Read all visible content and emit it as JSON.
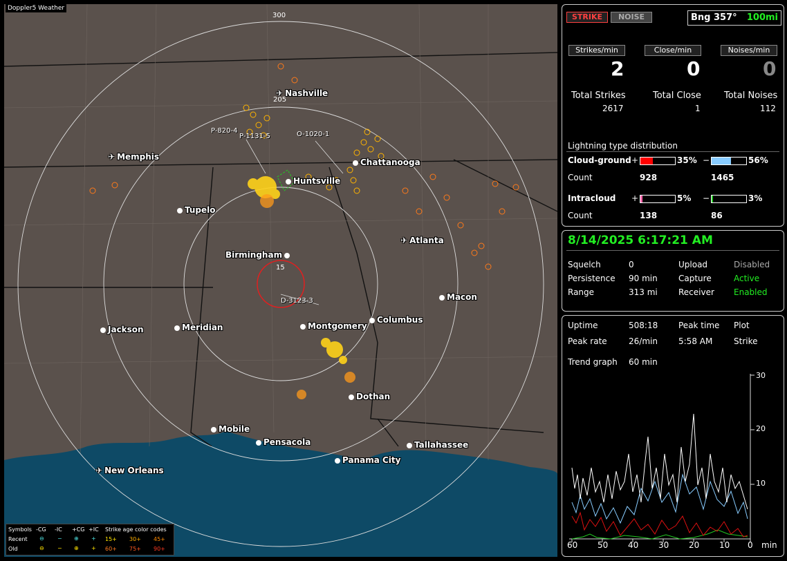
{
  "map": {
    "title": "Doppler5 Weather",
    "range_labels": [
      "300",
      "205",
      "15"
    ],
    "marker_labels": [
      "P-820-4",
      "P-1131-5",
      "O-1020-1",
      "D-3123-3"
    ],
    "cities": [
      {
        "name": "Nashville",
        "kind": "airport"
      },
      {
        "name": "Memphis",
        "kind": "airport"
      },
      {
        "name": "Chattanooga",
        "kind": "city"
      },
      {
        "name": "Huntsville",
        "kind": "city"
      },
      {
        "name": "Tupelo",
        "kind": "city"
      },
      {
        "name": "Atlanta",
        "kind": "airport"
      },
      {
        "name": "Birmingham",
        "kind": "city"
      },
      {
        "name": "Macon",
        "kind": "city"
      },
      {
        "name": "Jackson",
        "kind": "city"
      },
      {
        "name": "Meridian",
        "kind": "city"
      },
      {
        "name": "Montgomery",
        "kind": "city"
      },
      {
        "name": "Columbus",
        "kind": "city"
      },
      {
        "name": "Dothan",
        "kind": "city"
      },
      {
        "name": "Mobile",
        "kind": "city"
      },
      {
        "name": "Pensacola",
        "kind": "city"
      },
      {
        "name": "Tallahassee",
        "kind": "city"
      },
      {
        "name": "Panama City",
        "kind": "city"
      },
      {
        "name": "New Orleans",
        "kind": "airport"
      }
    ],
    "legend": {
      "symbols": "Symbols",
      "headers": [
        "-CG",
        "-IC",
        "+CG",
        "+IC"
      ],
      "age_title": "Strike age color codes",
      "recent": "Recent",
      "old": "Old",
      "recent_ages": [
        "15+",
        "30+",
        "45+"
      ],
      "old_ages": [
        "60+",
        "75+",
        "90+"
      ]
    }
  },
  "top": {
    "strike_btn": "STRIKE",
    "noise_btn": "NOISE",
    "bearing": "Bng 357°",
    "range": "100mi",
    "strikes_min_label": "Strikes/min",
    "close_min_label": "Close/min",
    "noises_min_label": "Noises/min",
    "strikes_min": "2",
    "close_min": "0",
    "noises_min": "0",
    "total_strikes_label": "Total Strikes",
    "total_close_label": "Total Close",
    "total_noises_label": "Total Noises",
    "total_strikes": "2617",
    "total_close": "1",
    "total_noises": "112",
    "dist_title": "Lightning type distribution",
    "cg_label": "Cloud-ground",
    "ic_label": "Intracloud",
    "count_label": "Count",
    "plus": "+",
    "minus": "−",
    "cg_pos_pct": "35%",
    "cg_neg_pct": "56%",
    "cg_pos_count": "928",
    "cg_neg_count": "1465",
    "ic_pos_pct": "5%",
    "ic_neg_pct": "3%",
    "ic_pos_count": "138",
    "ic_neg_count": "86"
  },
  "status": {
    "datetime": "8/14/2025 6:17:21 AM",
    "squelch_label": "Squelch",
    "squelch": "0",
    "persistence_label": "Persistence",
    "persistence": "90 min",
    "range_label": "Range",
    "range": "313 mi",
    "upload_label": "Upload",
    "upload": "Disabled",
    "capture_label": "Capture",
    "capture": "Active",
    "receiver_label": "Receiver",
    "receiver": "Enabled"
  },
  "trend": {
    "uptime_label": "Uptime",
    "uptime": "508:18",
    "peak_time_label": "Peak time",
    "peak_time": "5:58 AM",
    "plot_label": "Plot",
    "plot": "Strike",
    "peak_rate_label": "Peak rate",
    "peak_rate": "26/min",
    "trend_label": "Trend graph",
    "trend_window": "60 min",
    "y_ticks": [
      "30",
      "20",
      "10"
    ],
    "x_ticks": [
      "60",
      "50",
      "40",
      "30",
      "20",
      "10",
      "0"
    ],
    "x_unit": "min"
  },
  "colors": {
    "cg_pos": "#ff0000",
    "cg_neg": "#88ccff",
    "ic_pos": "#ff66aa",
    "ic_neg": "#22cc22",
    "green": "#22ee22"
  }
}
